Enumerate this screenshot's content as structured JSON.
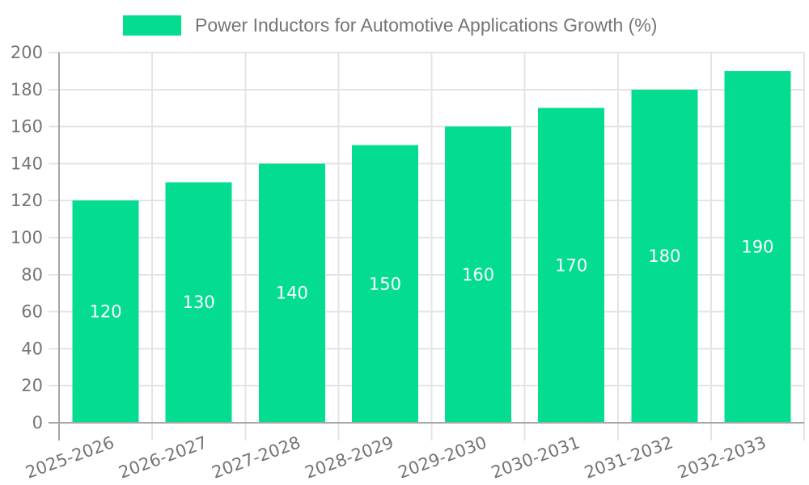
{
  "chart_data": {
    "type": "bar",
    "title": "Power Inductors for Automotive Applications Growth (%)",
    "categories": [
      "2025-2026",
      "2026-2027",
      "2027-2028",
      "2028-2029",
      "2029-2030",
      "2030-2031",
      "2031-2032",
      "2032-2033"
    ],
    "series": [
      {
        "name": "Power Inductors for Automotive Applications Growth (%)",
        "values": [
          120,
          130,
          140,
          150,
          160,
          170,
          180,
          190
        ]
      }
    ],
    "bar_value_labels": [
      "120",
      "130",
      "140",
      "150",
      "160",
      "170",
      "180",
      "190"
    ],
    "xlabel": "",
    "ylabel": "",
    "ylim": [
      0,
      200
    ],
    "yticks": [
      0,
      20,
      40,
      60,
      80,
      100,
      120,
      140,
      160,
      180,
      200
    ],
    "grid": true,
    "legend_position": "top",
    "colors": {
      "bar": "#04DD90",
      "grid": "#e4e4e4",
      "axis": "#a6a6a6",
      "tick_label": "#757575",
      "bar_label": "#ffffff",
      "background": "#ffffff"
    }
  }
}
